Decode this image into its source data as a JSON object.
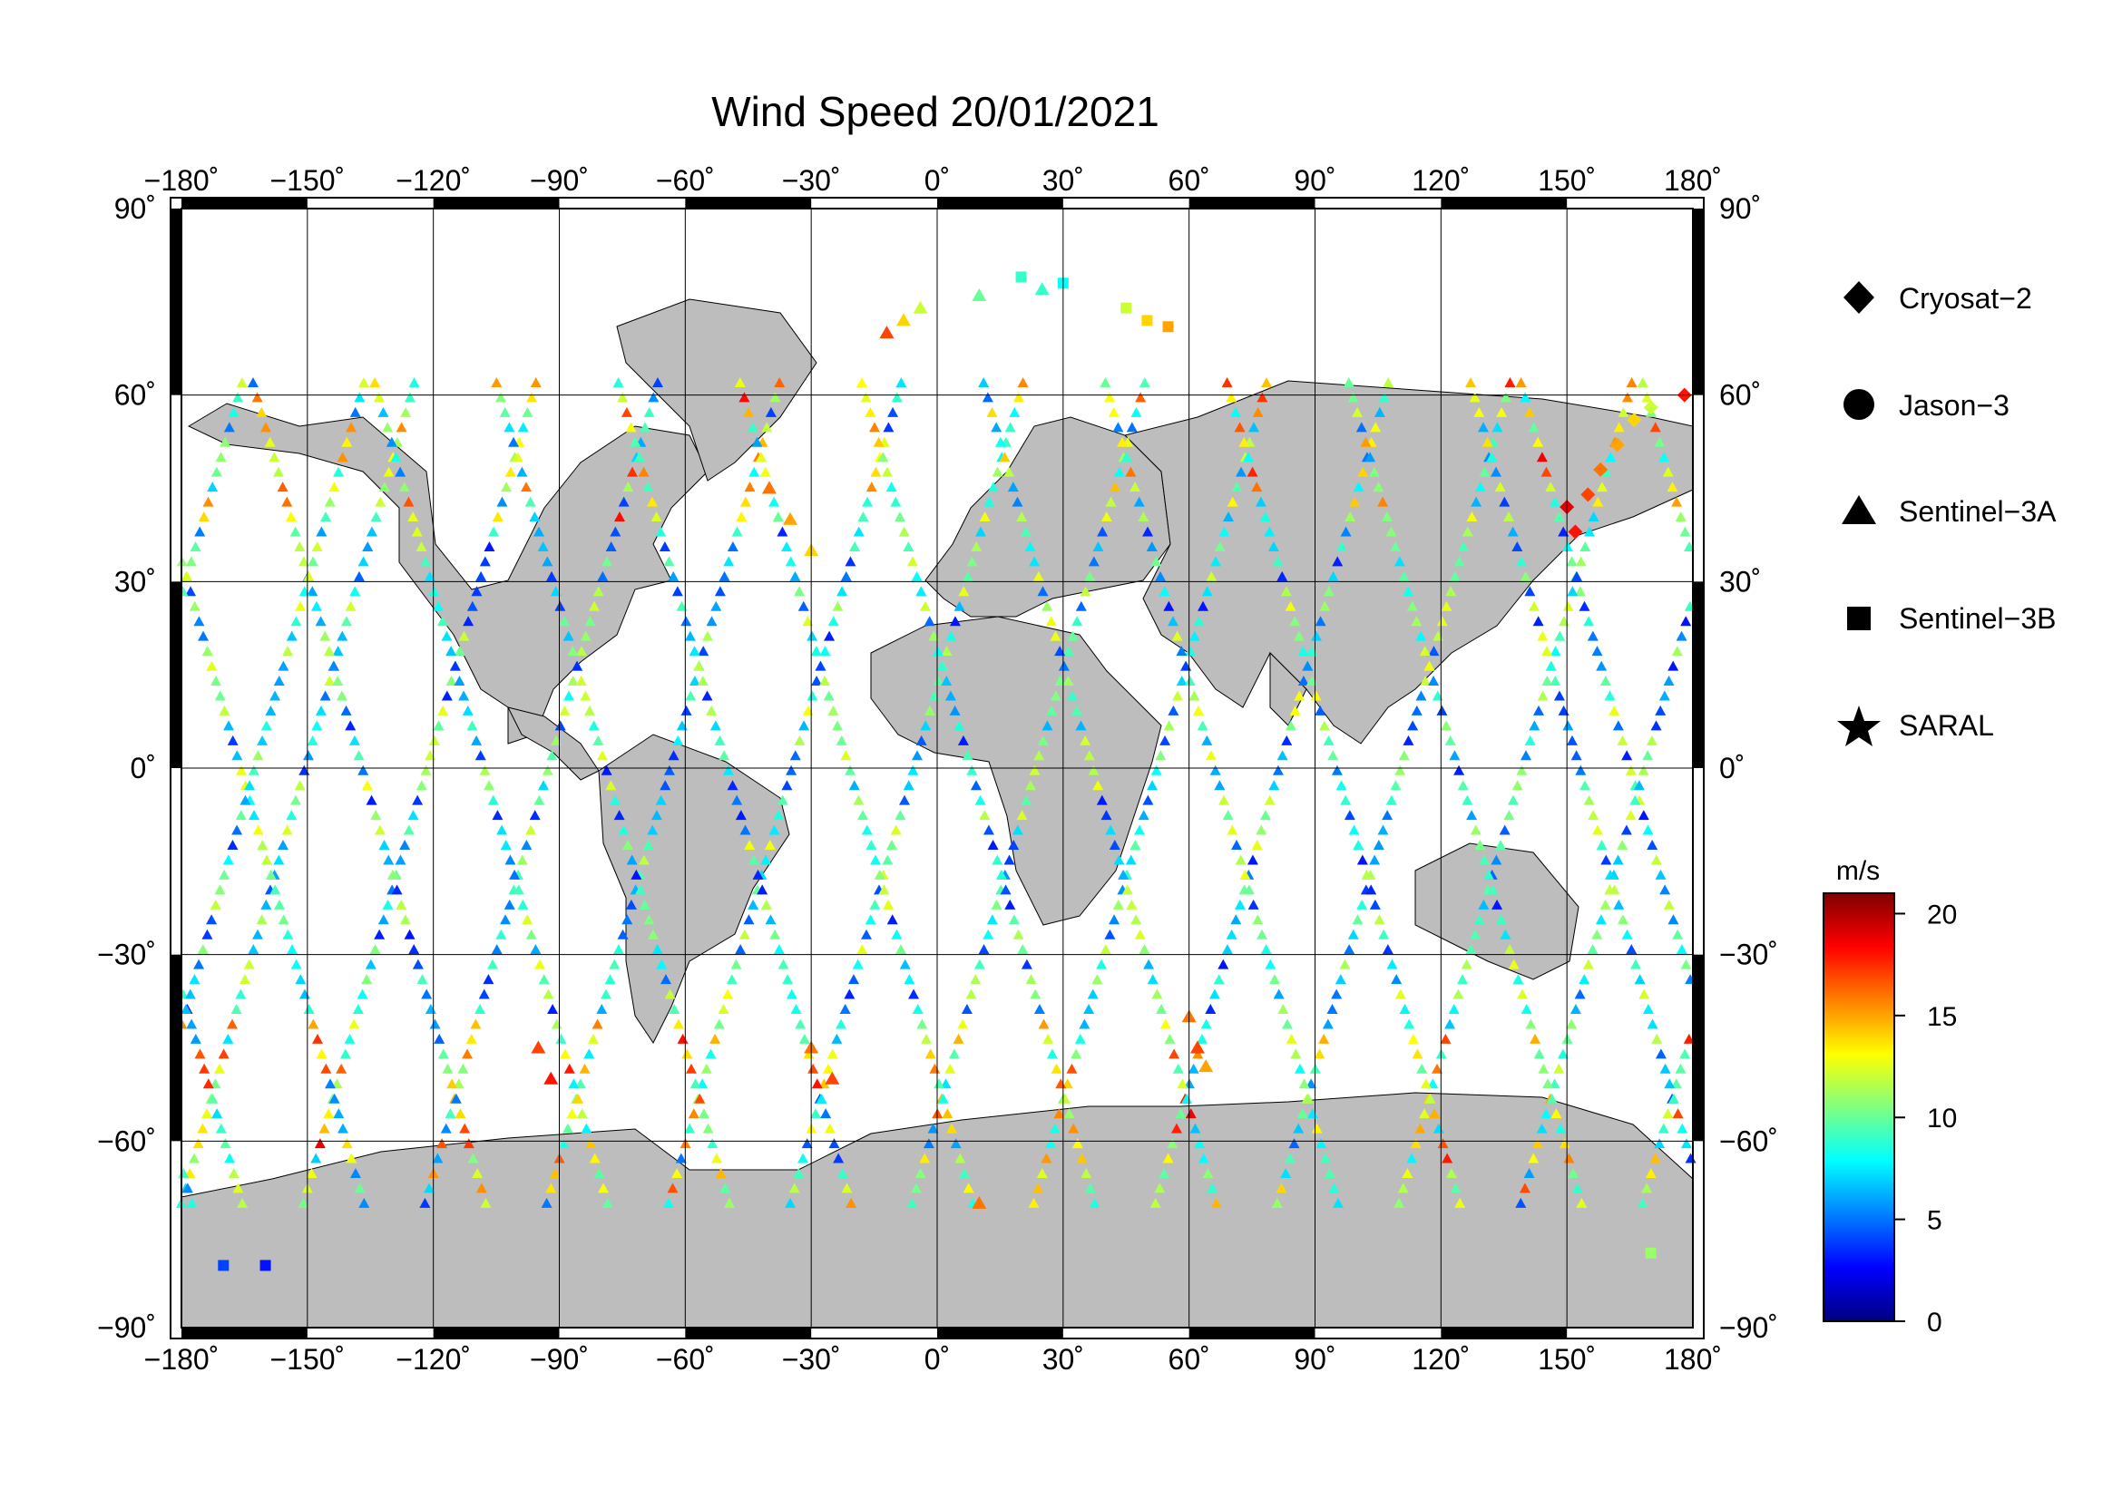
{
  "title": "Wind Speed 20/01/2021",
  "map": {
    "projection": "equirectangular",
    "lon_range": [
      -180,
      180
    ],
    "lat_range": [
      -90,
      90
    ],
    "lon_ticks": [
      "−180˚",
      "−150˚",
      "−120˚",
      "−90˚",
      "−60˚",
      "−30˚",
      "0˚",
      "30˚",
      "60˚",
      "90˚",
      "120˚",
      "150˚",
      "180˚"
    ],
    "lat_ticks_left": [
      "90˚",
      "60˚",
      "30˚",
      "0˚",
      "−30˚",
      "−60˚",
      "−90˚"
    ],
    "lat_ticks_right": [
      "90˚",
      "60˚",
      "30˚",
      "0˚",
      "−30˚",
      "−60˚",
      "−90˚"
    ],
    "grid": true,
    "land_color": "#bdbdbd",
    "ocean_color": "#ffffff"
  },
  "legend": {
    "placement": "right",
    "items": [
      {
        "label": "Cryosat−2",
        "marker": "diamond-icon"
      },
      {
        "label": "Jason−3",
        "marker": "circle-icon"
      },
      {
        "label": "Sentinel−3A",
        "marker": "triangle-icon"
      },
      {
        "label": "Sentinel−3B",
        "marker": "square-icon"
      },
      {
        "label": "SARAL",
        "marker": "star-icon"
      }
    ]
  },
  "colorbar": {
    "unit": "m/s",
    "range": [
      0,
      21
    ],
    "tick_labels": [
      "20",
      "15",
      "10",
      "5",
      "0"
    ],
    "tick_values": [
      20,
      15,
      10,
      5,
      0
    ],
    "colors": [
      "#000080",
      "#0000ff",
      "#0080ff",
      "#00ffff",
      "#80ff80",
      "#ffff00",
      "#ff8000",
      "#ff0000",
      "#800000"
    ]
  },
  "chart_data": {
    "type": "scatter",
    "title": "Wind Speed 20/01/2021",
    "xlabel": "",
    "ylabel": "",
    "xlim": [
      -180,
      180
    ],
    "ylim": [
      -90,
      90
    ],
    "value_unit": "m/s",
    "series": [
      {
        "name": "Cryosat−2",
        "marker": "diamond",
        "points": [
          [
            150,
            42,
            19
          ],
          [
            152,
            38,
            18
          ],
          [
            155,
            44,
            17
          ],
          [
            158,
            48,
            16
          ],
          [
            162,
            52,
            15
          ],
          [
            166,
            56,
            14
          ],
          [
            170,
            58,
            12
          ],
          [
            178,
            60,
            18
          ]
        ]
      },
      {
        "name": "Jason−3",
        "marker": "circle",
        "points": []
      },
      {
        "name": "Sentinel−3A",
        "marker": "triangle",
        "points": [
          [
            -12,
            70,
            17
          ],
          [
            -8,
            72,
            14
          ],
          [
            -4,
            74,
            12
          ],
          [
            10,
            76,
            10
          ],
          [
            25,
            77,
            9
          ],
          [
            -40,
            45,
            16
          ],
          [
            -35,
            40,
            15
          ],
          [
            -30,
            35,
            14
          ],
          [
            60,
            -40,
            16
          ],
          [
            62,
            -45,
            17
          ],
          [
            64,
            -48,
            15
          ],
          [
            -95,
            -45,
            17
          ],
          [
            -92,
            -50,
            18
          ],
          [
            -30,
            -45,
            16
          ],
          [
            -25,
            -50,
            17
          ],
          [
            10,
            -70,
            16
          ]
        ]
      },
      {
        "name": "Sentinel−3B",
        "marker": "square",
        "points": [
          [
            20,
            79,
            9
          ],
          [
            30,
            78,
            8
          ],
          [
            45,
            74,
            12
          ],
          [
            50,
            72,
            14
          ],
          [
            55,
            71,
            15
          ],
          [
            -170,
            -80,
            4
          ],
          [
            -160,
            -80,
            3
          ],
          [
            170,
            -78,
            11
          ]
        ]
      },
      {
        "name": "SARAL",
        "marker": "star",
        "points": []
      }
    ]
  }
}
